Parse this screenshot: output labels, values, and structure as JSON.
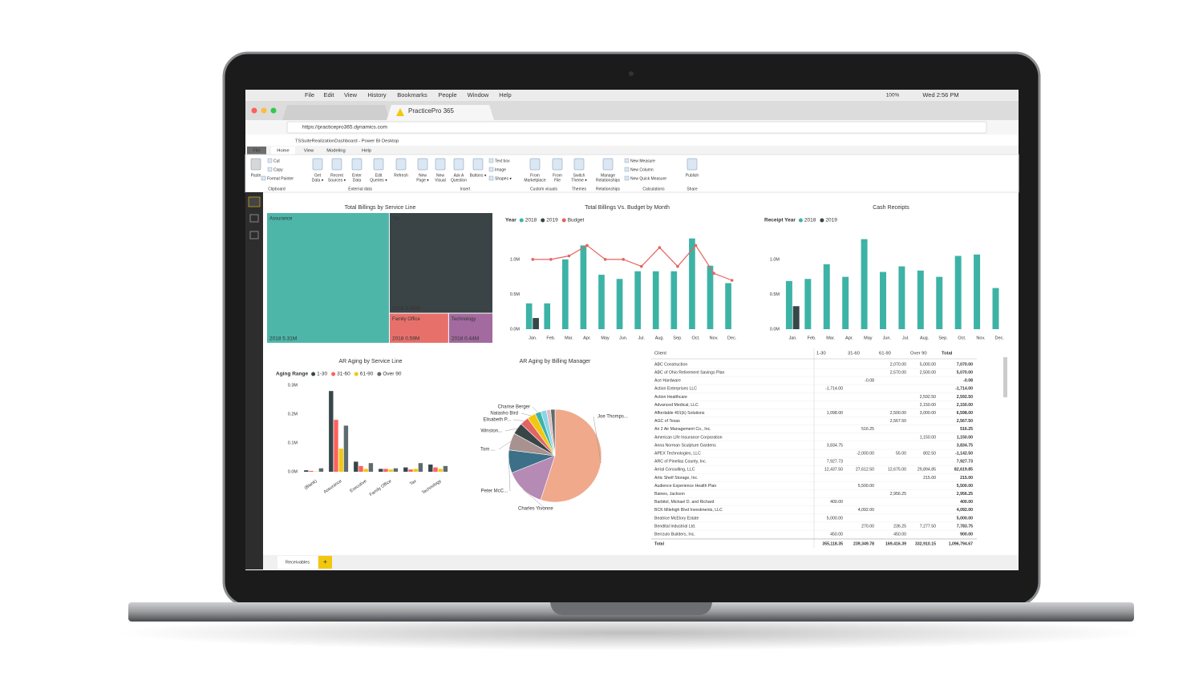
{
  "menubar": {
    "items": [
      "File",
      "Edit",
      "View",
      "History",
      "Bookmarks",
      "People",
      "Window",
      "Help"
    ],
    "battery": "100%",
    "clock": "Wed 2:56 PM"
  },
  "browser": {
    "tab": "PracticePro 365",
    "url": "https://practicepro365.dynamics.com"
  },
  "powerbi": {
    "title": "TSSuiteRealizationDashboard - Power BI Desktop",
    "tabs": [
      "File",
      "Home",
      "View",
      "Modeling",
      "Help"
    ],
    "buttons": [
      {
        "lines": [
          "Paste"
        ]
      },
      {
        "lines": [
          "Get",
          "Data ▾"
        ]
      },
      {
        "lines": [
          "Recent",
          "Sources ▾"
        ]
      },
      {
        "lines": [
          "Enter",
          "Data"
        ]
      },
      {
        "lines": [
          "Edit",
          "Queries ▾"
        ]
      },
      {
        "lines": [
          "Refresh"
        ]
      },
      {
        "lines": [
          "New",
          "Page ▾"
        ]
      },
      {
        "lines": [
          "New",
          "Visual"
        ]
      },
      {
        "lines": [
          "Ask A",
          "Question"
        ]
      },
      {
        "lines": [
          "Buttons ▾"
        ]
      },
      {
        "lines": [
          "From",
          "Marketplace"
        ]
      },
      {
        "lines": [
          "From",
          "File"
        ]
      },
      {
        "lines": [
          "Switch",
          "Theme ▾"
        ]
      },
      {
        "lines": [
          "Manage",
          "Relationships"
        ]
      },
      {
        "lines": [
          "Publish"
        ]
      }
    ],
    "small_buttons": [
      "Cut",
      "Copy",
      "Format Painter",
      "Text box",
      "Image",
      "Shapes ▾",
      "New Measure",
      "New Column",
      "New Quick Measure"
    ],
    "groups": [
      "Clipboard",
      "External data",
      "Insert",
      "Custom visuals",
      "Themes",
      "Relationships",
      "Calculations",
      "Share"
    ],
    "page_tab": "Receivables"
  },
  "chart_data": [
    {
      "type": "treemap",
      "title": "Total Billings by Service Line",
      "categories": [
        "Assurance",
        "Tax",
        "Family Office",
        "Technology"
      ],
      "values": [
        5.31,
        3.45,
        0.59,
        0.44
      ],
      "value_labels": [
        "2018 5.31M",
        "2018 3.45M",
        "2018 0.59M",
        "2018 0.44M"
      ],
      "colors": [
        "#4db6a9",
        "#3a4446",
        "#e8706b",
        "#a26a9e"
      ]
    },
    {
      "type": "bar",
      "title": "Total Billings Vs. Budget by Month",
      "legend_title": "Year",
      "categories": [
        "Jan.",
        "Feb.",
        "Mar.",
        "Apr.",
        "May",
        "Jun.",
        "Jul.",
        "Aug.",
        "Sep.",
        "Oct.",
        "Nov.",
        "Dec."
      ],
      "series": [
        {
          "name": "2018",
          "color": "#3db3a6",
          "values": [
            0.37,
            0.37,
            1.0,
            1.2,
            0.78,
            0.72,
            0.83,
            0.83,
            0.83,
            1.3,
            0.91,
            0.66
          ]
        },
        {
          "name": "2019",
          "color": "#374649",
          "values": [
            0.16,
            null,
            null,
            null,
            null,
            null,
            null,
            null,
            null,
            null,
            null,
            null
          ]
        },
        {
          "name": "Budget",
          "type": "line",
          "color": "#e8635f",
          "values": [
            1.0,
            1.0,
            1.05,
            1.2,
            1.0,
            1.0,
            0.9,
            1.17,
            0.9,
            1.2,
            0.8,
            0.7
          ]
        }
      ],
      "ylim": [
        0,
        1.4
      ],
      "yticks": [
        {
          "value": 0,
          "label": "0.0M"
        },
        {
          "value": 0.5,
          "label": "0.5M"
        },
        {
          "value": 1.0,
          "label": "1.0M"
        }
      ]
    },
    {
      "type": "bar",
      "title": "Cash Receipts",
      "legend_title": "Receipt Year",
      "categories": [
        "Jan.",
        "Feb.",
        "Mar.",
        "Apr.",
        "May",
        "Jun.",
        "Jul.",
        "Aug.",
        "Sep.",
        "Oct.",
        "Nov.",
        "Dec."
      ],
      "series": [
        {
          "name": "2018",
          "color": "#3db3a6",
          "values": [
            0.69,
            0.72,
            0.93,
            0.75,
            1.29,
            0.82,
            0.9,
            0.84,
            0.75,
            1.05,
            1.07,
            0.59
          ]
        },
        {
          "name": "2019",
          "color": "#374649",
          "values": [
            0.33,
            null,
            null,
            null,
            null,
            null,
            null,
            null,
            null,
            null,
            null,
            null
          ]
        }
      ],
      "ylim": [
        0,
        1.4
      ],
      "yticks": [
        {
          "value": 0,
          "label": "0.0M"
        },
        {
          "value": 0.5,
          "label": "0.5M"
        },
        {
          "value": 1.0,
          "label": "1.0M"
        }
      ]
    },
    {
      "type": "bar",
      "title": "AR Aging by Service Line",
      "legend_title": "Aging Range",
      "categories": [
        "(Blank)",
        "Assurance",
        "Executive",
        "Family Office",
        "Tax",
        "Technology"
      ],
      "series": [
        {
          "name": "1-30",
          "color": "#374649",
          "values": [
            0.005,
            0.28,
            0.035,
            0.01,
            0.015,
            0.025
          ]
        },
        {
          "name": "31-60",
          "color": "#fd625e",
          "values": [
            0.003,
            0.18,
            0.02,
            0.01,
            0.008,
            0.015
          ]
        },
        {
          "name": "61-90",
          "color": "#f2c80f",
          "values": [
            0.001,
            0.08,
            0.01,
            0.008,
            0.01,
            0.01
          ]
        },
        {
          "name": "Over 90",
          "color": "#5f6b6d",
          "values": [
            0.012,
            0.16,
            0.03,
            0.012,
            0.03,
            0.02
          ]
        }
      ],
      "ylim": [
        0,
        0.3
      ],
      "yticks": [
        {
          "value": 0,
          "label": "0.0M"
        },
        {
          "value": 0.1,
          "label": "0.1M"
        },
        {
          "value": 0.2,
          "label": "0.2M"
        },
        {
          "value": 0.3,
          "label": "0.3M"
        }
      ]
    },
    {
      "type": "pie",
      "title": "AR Aging by Billing Manager",
      "categories": [
        "Joe Thomps...",
        "Charles Yivonne",
        "Peter McC...",
        "Tom ...",
        "Winston...",
        "Elisabeth P...",
        "Natasho Bird",
        "Charise Berger",
        null,
        null,
        null
      ],
      "values": [
        55,
        14,
        8,
        6,
        4,
        3,
        3,
        2,
        2,
        1.5,
        1.5
      ],
      "colors": [
        "#f0a98a",
        "#b58ab5",
        "#3b7088",
        "#a7928f",
        "#394648",
        "#e36463",
        "#f2c80f",
        "#3db3a6",
        "#8ad4eb",
        "#dfbfbf",
        "#5f6b6d"
      ]
    }
  ],
  "table": {
    "columns": [
      "Client",
      "1-30",
      "31-60",
      "61-90",
      "Over 90",
      "Total"
    ],
    "rows": [
      [
        "ABC Construction",
        null,
        null,
        "2,070.00",
        "5,000.00",
        "7,070.00"
      ],
      [
        "ABC of Ohio Retirement Savings Plan",
        null,
        null,
        "2,570.00",
        "2,500.00",
        "5,070.00"
      ],
      [
        "Ace Hardware",
        null,
        "-0.08",
        null,
        null,
        "-0.08"
      ],
      [
        "Action Enterprises LLC",
        "-1,714.00",
        null,
        null,
        null,
        "-1,714.00"
      ],
      [
        "Action Healthcare",
        null,
        null,
        null,
        "2,592.50",
        "2,592.50"
      ],
      [
        "Advanced Medical, LLC",
        null,
        null,
        null,
        "2,150.00",
        "2,150.00"
      ],
      [
        "Affordable 401(k) Solutions",
        "1,098.00",
        null,
        "2,500.00",
        "3,000.00",
        "6,598.00"
      ],
      [
        "AGC of Texas",
        null,
        null,
        "2,567.50",
        null,
        "2,567.50"
      ],
      [
        "Air 2 Air Management Co., Inc.",
        null,
        "516.25",
        null,
        null,
        "516.25"
      ],
      [
        "American Life Insurance Corporation",
        null,
        null,
        null,
        "1,150.00",
        "1,150.00"
      ],
      [
        "Anna Norman Sculpture Gardens",
        "3,834.75",
        null,
        null,
        null,
        "3,834.75"
      ],
      [
        "APEX Technologies, LLC",
        null,
        "-2,000.00",
        "55.00",
        "802.50",
        "-1,142.50"
      ],
      [
        "ARC of Pinellas County, Inc.",
        "7,927.73",
        null,
        null,
        null,
        "7,927.73"
      ],
      [
        "Arrial Consulting, LLC",
        "12,437.50",
        "27,612.50",
        "12,675.00",
        "29,894.85",
        "82,619.85"
      ],
      [
        "Artic Shelf Storage, Inc.",
        null,
        null,
        null,
        "215.00",
        "215.00"
      ],
      [
        "Audience Experience Health Plan",
        null,
        "5,500.00",
        null,
        null,
        "5,500.00"
      ],
      [
        "Baines, Jackson",
        null,
        null,
        "2,956.25",
        null,
        "2,956.25"
      ],
      [
        "Barbitol, Michael D. and Richard",
        "400.00",
        null,
        null,
        null,
        "400.00"
      ],
      [
        "BCK Milehigh Blvd Investments, LLC",
        null,
        "4,092.00",
        null,
        null,
        "4,092.00"
      ],
      [
        "Beatrice McElory Estate",
        "5,000.00",
        null,
        null,
        null,
        "5,000.00"
      ],
      [
        "Bendital Industrial Ltd.",
        null,
        "270.00",
        "236.25",
        "7,277.50",
        "7,783.75"
      ],
      [
        "Berrzulo Builders, Inc.",
        "450.00",
        null,
        "450.00",
        null,
        "900.00"
      ]
    ],
    "total": [
      "Total",
      "355,118.35",
      "239,349.78",
      "169,416.39",
      "332,910.15",
      "1,096,794.67"
    ]
  }
}
